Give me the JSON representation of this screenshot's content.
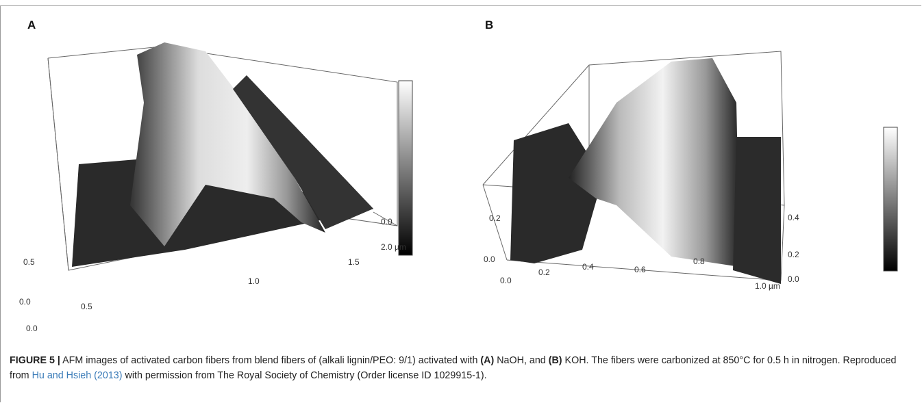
{
  "figure": {
    "panels": [
      {
        "label": "A",
        "tick_labels": [
          "0.0",
          "0.5",
          "0.0",
          "0.5",
          "1.0",
          "1.5",
          "2.0 µm",
          "0.0"
        ]
      },
      {
        "label": "B",
        "tick_labels": [
          "0.0",
          "0.2",
          "0.0",
          "0.2",
          "0.4",
          "0.6",
          "0.8",
          "1.0 µm",
          "0.0",
          "0.2",
          "0.4"
        ]
      }
    ],
    "caption": {
      "label": "FIGURE 5 |",
      "parts": [
        " AFM images of activated carbon fibers from blend fibers of (alkali lignin/PEO: 9/1) activated with ",
        "(A)",
        " NaOH, and ",
        "(B)",
        " KOH. The fibers were carbonized at 850°C for 0.5 h in nitrogen. Reproduced from ",
        "Hu and Hsieh (2013)",
        " with permission from The Royal Society of Chemistry (Order license ID 1029915-1)."
      ]
    }
  }
}
